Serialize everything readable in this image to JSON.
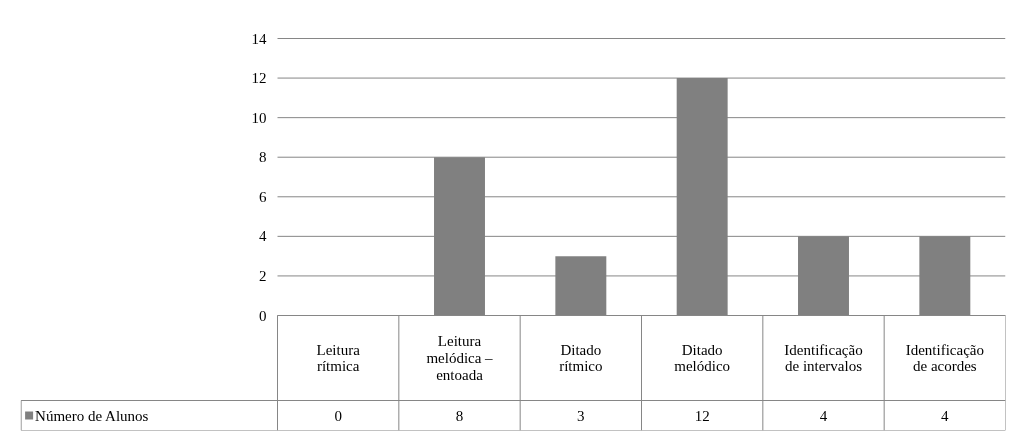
{
  "chart_data": {
    "type": "bar",
    "categories": [
      "Leitura rítmica",
      "Leitura melódica – entoada",
      "Ditado rítmico",
      "Ditado melódico",
      "Identificação de intervalos",
      "Identificação de acordes"
    ],
    "series": [
      {
        "name": "Número de Alunos",
        "color": "#808080",
        "values": [
          0,
          8,
          3,
          12,
          4,
          4
        ]
      }
    ],
    "ylim": [
      0,
      14
    ],
    "yticks": [
      0,
      2,
      4,
      6,
      8,
      10,
      12,
      14
    ],
    "grid": "y",
    "legend": "bottom",
    "data_labels": true
  }
}
